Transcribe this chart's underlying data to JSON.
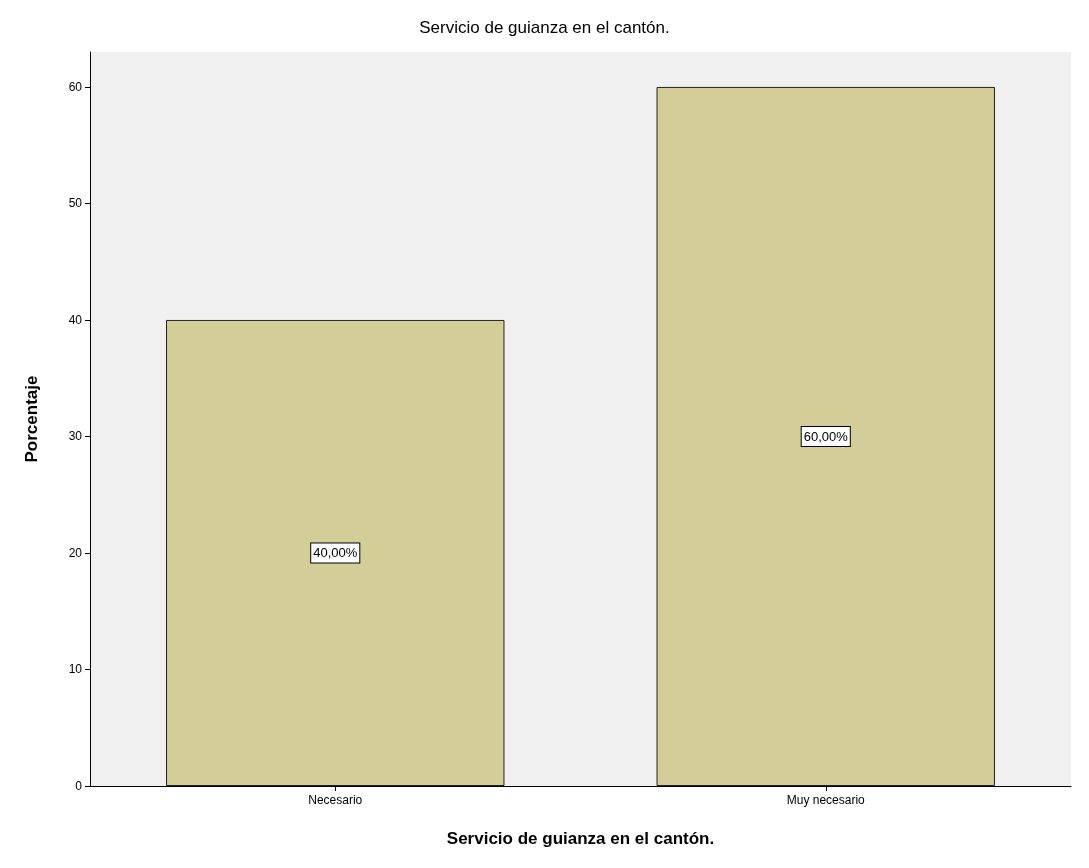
{
  "chart_data": {
    "type": "bar",
    "title": "Servicio de guianza en el cantón.",
    "xlabel": "Servicio de guianza en el cantón.",
    "ylabel": "Porcentaje",
    "categories": [
      "Necesario",
      "Muy necesario"
    ],
    "values": [
      40,
      60
    ],
    "value_labels": [
      "40,00%",
      "60,00%"
    ],
    "color": "#d3cd98",
    "ylim": [
      0,
      63
    ],
    "yticks": [
      0,
      10,
      20,
      30,
      40,
      50,
      60
    ],
    "grid": false
  }
}
